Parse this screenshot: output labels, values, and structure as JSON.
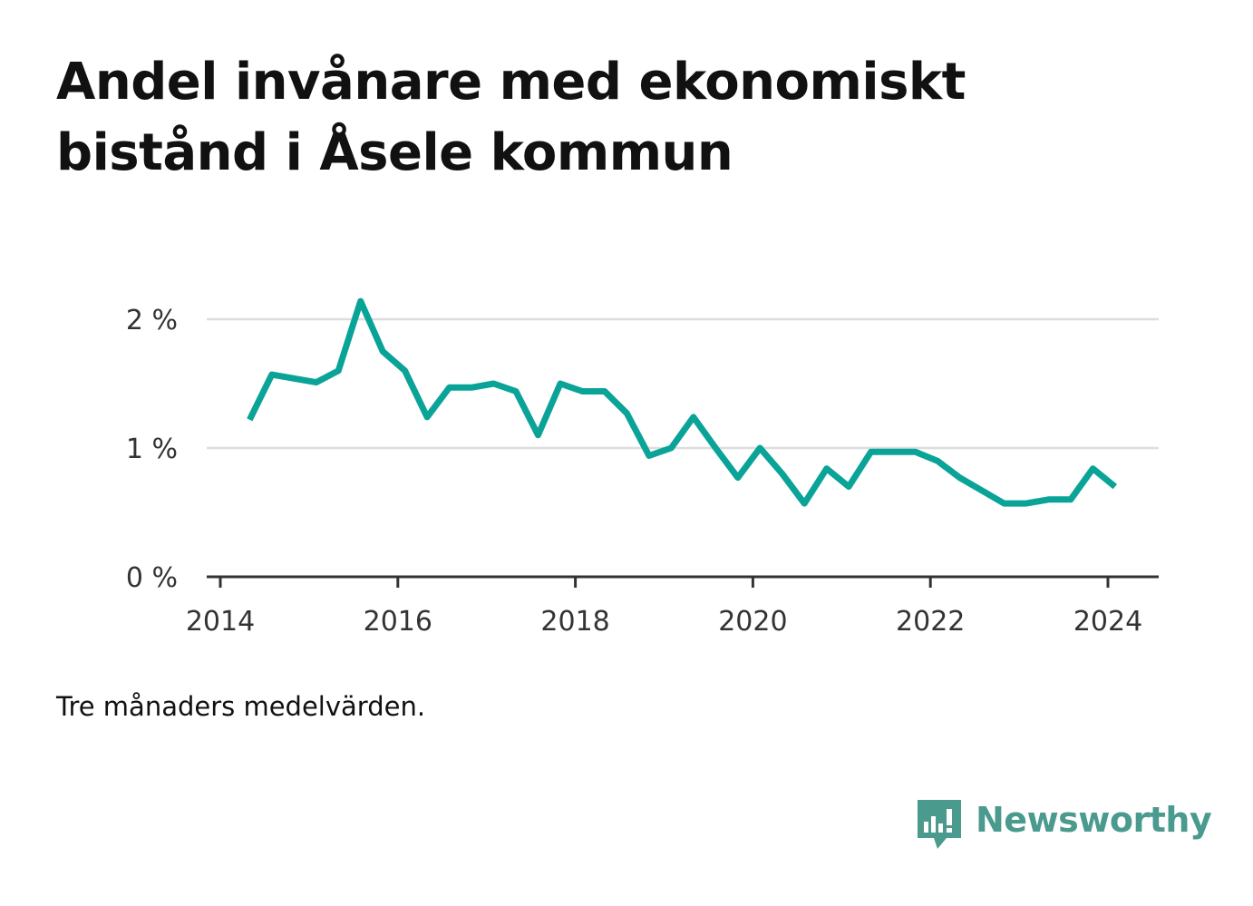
{
  "title": "Andel invånare med ekonomiskt bistånd i Åsele kommun",
  "note": "Tre månaders medelvärden.",
  "brand": {
    "name": "Newsworthy",
    "icon": "newsworthy-logo-icon",
    "color": "#4a9a8e"
  },
  "colors": {
    "line": "#0aa398",
    "grid": "#dddddd",
    "axis": "#333333",
    "text": "#111111"
  },
  "chart_data": {
    "type": "line",
    "title": "Andel invånare med ekonomiskt bistånd i Åsele kommun",
    "xlabel": "",
    "ylabel": "",
    "x_ticks": [
      "2014",
      "2016",
      "2018",
      "2020",
      "2022",
      "2024"
    ],
    "x_tick_values": [
      2014,
      2016,
      2018,
      2020,
      2022,
      2024
    ],
    "y_ticks": [
      "0 %",
      "1 %",
      "2 %"
    ],
    "y_tick_values": [
      0,
      1,
      2
    ],
    "xlim": [
      2014,
      2024.6
    ],
    "ylim": [
      0,
      2.2
    ],
    "grid": true,
    "legend": "none",
    "series": [
      {
        "x": [
          2014.33,
          2014.58,
          2014.83,
          2015.08,
          2015.33,
          2015.58,
          2015.83,
          2016.08,
          2016.33,
          2016.58,
          2016.83,
          2017.08,
          2017.33,
          2017.58,
          2017.83,
          2018.08,
          2018.33,
          2018.58,
          2018.83,
          2019.08,
          2019.33,
          2019.58,
          2019.83,
          2020.08,
          2020.33,
          2020.58,
          2020.83,
          2021.08,
          2021.33,
          2021.58,
          2021.83,
          2022.08,
          2022.33,
          2022.58,
          2022.83,
          2023.08,
          2023.33,
          2023.58,
          2023.83,
          2024.08
        ],
        "values": [
          1.22,
          1.57,
          1.54,
          1.51,
          1.6,
          2.14,
          1.75,
          1.6,
          1.24,
          1.47,
          1.47,
          1.5,
          1.44,
          1.1,
          1.5,
          1.44,
          1.44,
          1.27,
          0.94,
          1.0,
          1.24,
          1.0,
          0.77,
          1.0,
          0.8,
          0.57,
          0.84,
          0.7,
          0.97,
          0.97,
          0.97,
          0.9,
          0.77,
          0.67,
          0.57,
          0.57,
          0.6,
          0.6,
          0.84,
          0.7
        ]
      }
    ]
  }
}
